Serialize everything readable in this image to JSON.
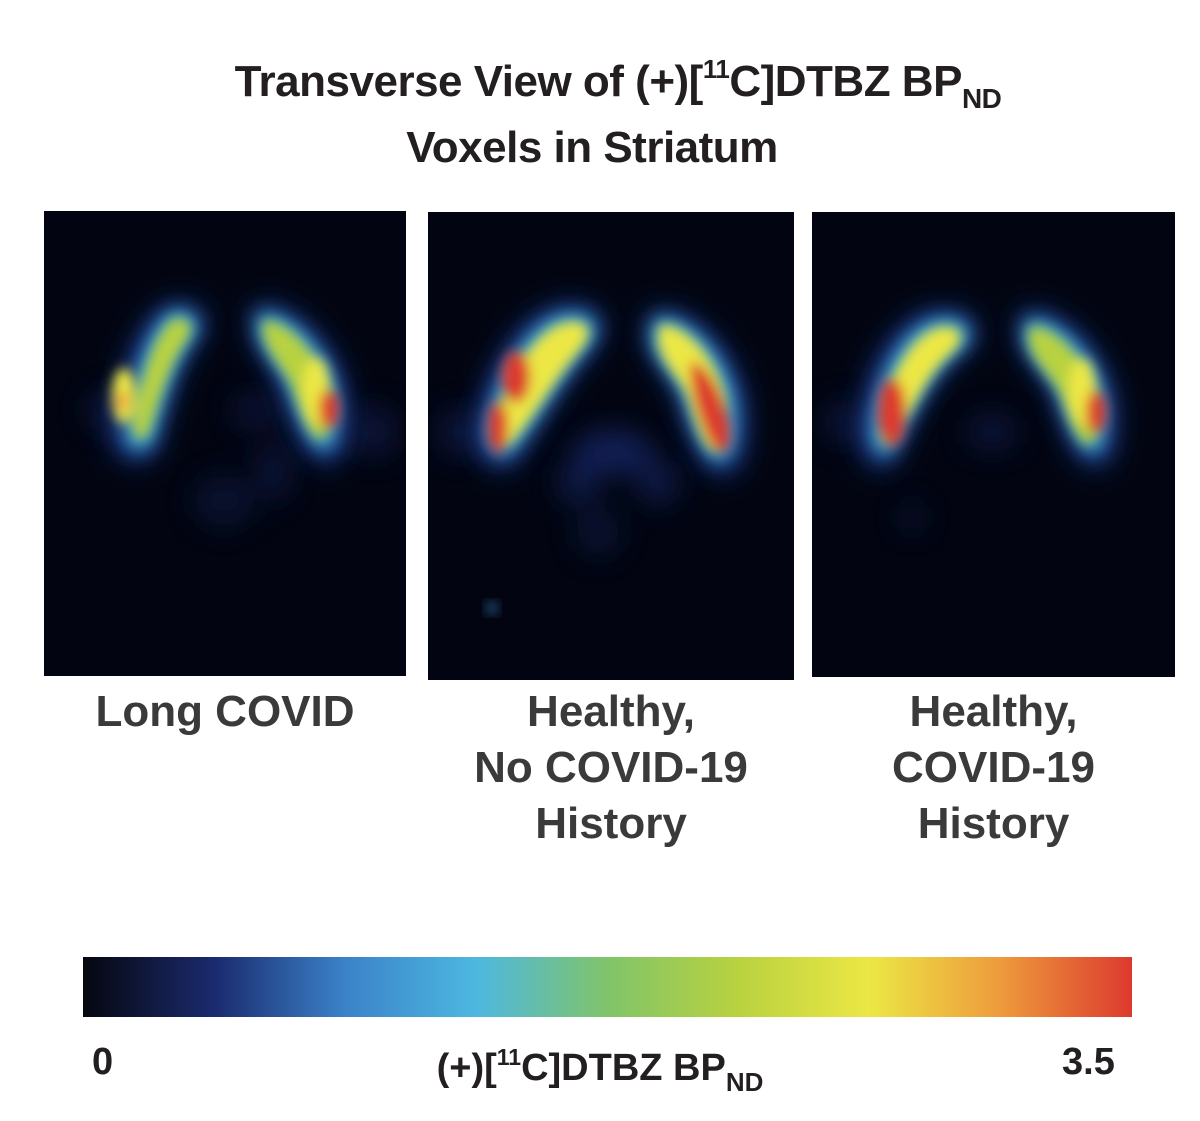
{
  "title": {
    "line1_prefix": "Transverse View of (+)[",
    "line1_isotope": "11",
    "line1_middle": "C]DTBZ BP",
    "line1_sub": "ND",
    "line2": "Voxels in Striatum"
  },
  "panels": [
    {
      "label_lines": [
        "Long COVID"
      ]
    },
    {
      "label_lines": [
        "Healthy,",
        "No COVID-19",
        "History"
      ]
    },
    {
      "label_lines": [
        "Healthy,",
        "COVID-19",
        "History"
      ]
    }
  ],
  "colorbar": {
    "min_label": "0",
    "max_label": "3.5",
    "label_prefix": "(+)[",
    "label_isotope": "11",
    "label_middle": "C]DTBZ BP",
    "label_sub": "ND",
    "colormap": [
      "#05070f",
      "#1b2a6e",
      "#3b82c9",
      "#4db8e0",
      "#80c46a",
      "#b9d23f",
      "#ece745",
      "#ee9a3c",
      "#dc3a2e"
    ]
  }
}
